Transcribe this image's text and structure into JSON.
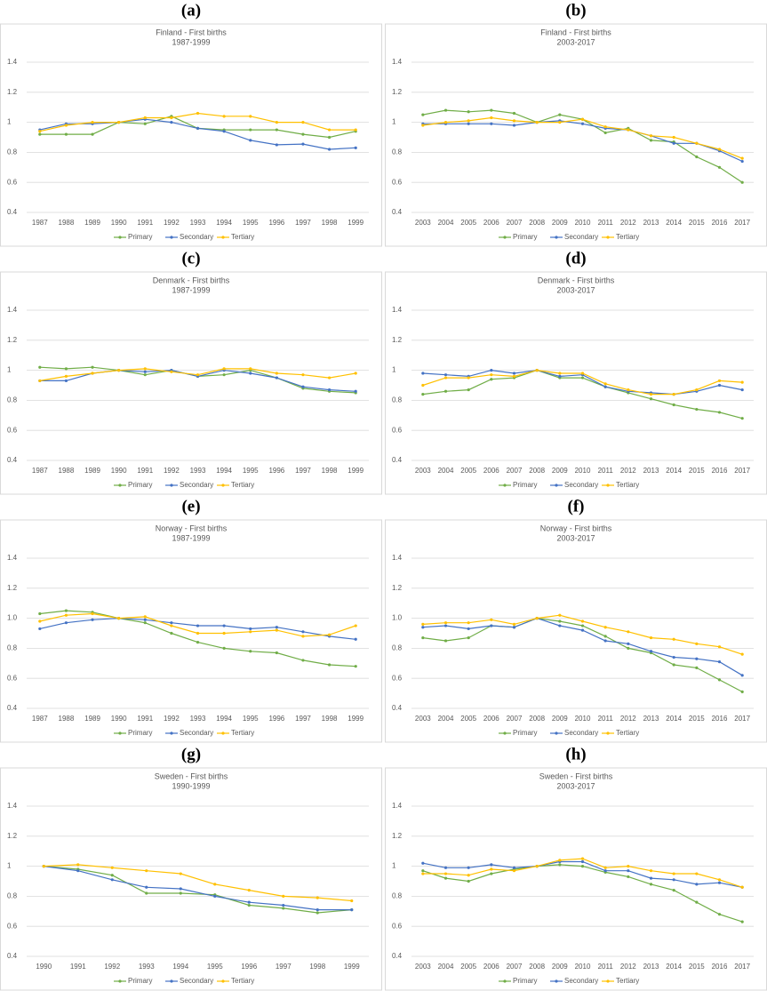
{
  "chart_data": [
    {
      "type": "line",
      "panel": "(a)",
      "title": "Finland - First births",
      "subtitle": "1987-1999",
      "categories": [
        "1987",
        "1988",
        "1989",
        "1990",
        "1991",
        "1992",
        "1993",
        "1994",
        "1995",
        "1996",
        "1997",
        "1998",
        "1999"
      ],
      "series": [
        {
          "name": "Primary",
          "color": "#70ad47",
          "values": [
            0.92,
            0.92,
            0.92,
            1.0,
            0.99,
            1.04,
            0.96,
            0.95,
            0.95,
            0.95,
            0.92,
            0.9,
            0.94
          ]
        },
        {
          "name": "Secondary",
          "color": "#4472c4",
          "values": [
            0.95,
            0.99,
            0.99,
            1.0,
            1.02,
            1.0,
            0.96,
            0.94,
            0.88,
            0.85,
            0.855,
            0.82,
            0.83
          ]
        },
        {
          "name": "Tertiary",
          "color": "#ffc000",
          "values": [
            0.94,
            0.98,
            1.0,
            1.0,
            1.03,
            1.03,
            1.06,
            1.04,
            1.04,
            1.0,
            1.0,
            0.95,
            0.95
          ]
        }
      ],
      "ylim": [
        0.4,
        1.4
      ],
      "yticks": [
        0.4,
        0.6,
        0.8,
        1,
        1.2,
        1.4
      ],
      "grid": true,
      "legend": "bottom"
    },
    {
      "type": "line",
      "panel": "(b)",
      "title": "Finland - First births",
      "subtitle": "2003-2017",
      "categories": [
        "2003",
        "2004",
        "2005",
        "2006",
        "2007",
        "2008",
        "2009",
        "2010",
        "2011",
        "2012",
        "2013",
        "2014",
        "2015",
        "2016",
        "2017"
      ],
      "series": [
        {
          "name": "Primary",
          "color": "#70ad47",
          "values": [
            1.05,
            1.08,
            1.07,
            1.08,
            1.06,
            1.0,
            1.05,
            1.02,
            0.93,
            0.96,
            0.88,
            0.87,
            0.77,
            0.7,
            0.6
          ]
        },
        {
          "name": "Secondary",
          "color": "#4472c4",
          "values": [
            0.99,
            0.99,
            0.99,
            0.99,
            0.98,
            1.0,
            1.01,
            0.99,
            0.96,
            0.95,
            0.91,
            0.86,
            0.86,
            0.81,
            0.74
          ]
        },
        {
          "name": "Tertiary",
          "color": "#ffc000",
          "values": [
            0.98,
            1.0,
            1.01,
            1.03,
            1.01,
            1.0,
            1.0,
            1.02,
            0.97,
            0.95,
            0.91,
            0.9,
            0.86,
            0.82,
            0.76
          ]
        }
      ],
      "ylim": [
        0.4,
        1.4
      ],
      "yticks": [
        0.4,
        0.6,
        0.8,
        1,
        1.2,
        1.4
      ],
      "grid": true,
      "legend": "bottom"
    },
    {
      "type": "line",
      "panel": "(c)",
      "title": "Denmark - First births",
      "subtitle": "1987-1999",
      "categories": [
        "1987",
        "1988",
        "1989",
        "1990",
        "1991",
        "1992",
        "1993",
        "1994",
        "1995",
        "1996",
        "1997",
        "1998",
        "1999"
      ],
      "series": [
        {
          "name": "Primary",
          "color": "#70ad47",
          "values": [
            1.02,
            1.01,
            1.02,
            1.0,
            0.97,
            1.0,
            0.96,
            0.97,
            1.0,
            0.95,
            0.88,
            0.86,
            0.85
          ]
        },
        {
          "name": "Secondary",
          "color": "#4472c4",
          "values": [
            0.93,
            0.93,
            0.98,
            1.0,
            0.99,
            1.0,
            0.96,
            1.0,
            0.98,
            0.95,
            0.89,
            0.87,
            0.86
          ]
        },
        {
          "name": "Tertiary",
          "color": "#ffc000",
          "values": [
            0.93,
            0.96,
            0.98,
            1.0,
            1.01,
            0.99,
            0.97,
            1.01,
            1.01,
            0.98,
            0.97,
            0.95,
            0.98
          ]
        }
      ],
      "ylim": [
        0.4,
        1.4
      ],
      "yticks": [
        0.4,
        0.6,
        0.8,
        1,
        1.2,
        1.4
      ],
      "grid": true,
      "legend": "bottom"
    },
    {
      "type": "line",
      "panel": "(d)",
      "title": "Denmark - First births",
      "subtitle": "2003-2017",
      "categories": [
        "2003",
        "2004",
        "2005",
        "2006",
        "2007",
        "2008",
        "2009",
        "2010",
        "2011",
        "2012",
        "2013",
        "2014",
        "2015",
        "2016",
        "2017"
      ],
      "series": [
        {
          "name": "Primary",
          "color": "#70ad47",
          "values": [
            0.84,
            0.86,
            0.87,
            0.94,
            0.95,
            1.0,
            0.95,
            0.95,
            0.89,
            0.85,
            0.81,
            0.77,
            0.74,
            0.72,
            0.68
          ]
        },
        {
          "name": "Secondary",
          "color": "#4472c4",
          "values": [
            0.98,
            0.97,
            0.96,
            1.0,
            0.98,
            1.0,
            0.96,
            0.97,
            0.89,
            0.86,
            0.85,
            0.84,
            0.86,
            0.9,
            0.87
          ]
        },
        {
          "name": "Tertiary",
          "color": "#ffc000",
          "values": [
            0.9,
            0.95,
            0.95,
            0.97,
            0.96,
            1.0,
            0.98,
            0.98,
            0.91,
            0.87,
            0.84,
            0.84,
            0.87,
            0.93,
            0.92
          ]
        }
      ],
      "ylim": [
        0.4,
        1.4
      ],
      "yticks": [
        0.4,
        0.6,
        0.8,
        1,
        1.2,
        1.4
      ],
      "grid": true,
      "legend": "bottom"
    },
    {
      "type": "line",
      "panel": "(e)",
      "title": "Norway - First births",
      "subtitle": "1987-1999",
      "categories": [
        "1987",
        "1988",
        "1989",
        "1990",
        "1991",
        "1992",
        "1993",
        "1994",
        "1995",
        "1996",
        "1997",
        "1998",
        "1999"
      ],
      "series": [
        {
          "name": "Primary",
          "color": "#70ad47",
          "values": [
            1.03,
            1.05,
            1.04,
            1.0,
            0.97,
            0.9,
            0.84,
            0.8,
            0.78,
            0.77,
            0.72,
            0.69,
            0.68
          ]
        },
        {
          "name": "Secondary",
          "color": "#4472c4",
          "values": [
            0.93,
            0.97,
            0.99,
            1.0,
            0.99,
            0.97,
            0.95,
            0.95,
            0.93,
            0.94,
            0.91,
            0.88,
            0.86
          ]
        },
        {
          "name": "Tertiary",
          "color": "#ffc000",
          "values": [
            0.98,
            1.02,
            1.03,
            1.0,
            1.01,
            0.95,
            0.9,
            0.9,
            0.91,
            0.92,
            0.88,
            0.89,
            0.95
          ]
        }
      ],
      "ylim": [
        0.4,
        1.4
      ],
      "yticks": [
        0.4,
        0.6,
        0.8,
        {
          "value": 1,
          "label": "1.0"
        },
        1.2,
        1.4
      ],
      "grid": true,
      "legend": "bottom"
    },
    {
      "type": "line",
      "panel": "(f)",
      "title": "Norway - First births",
      "subtitle": "2003-2017",
      "categories": [
        "2003",
        "2004",
        "2005",
        "2006",
        "2007",
        "2008",
        "2009",
        "2010",
        "2011",
        "2012",
        "2013",
        "2014",
        "2015",
        "2016",
        "2017"
      ],
      "series": [
        {
          "name": "Primary",
          "color": "#70ad47",
          "values": [
            0.87,
            0.85,
            0.87,
            0.95,
            0.94,
            1.0,
            0.98,
            0.95,
            0.88,
            0.8,
            0.77,
            0.69,
            0.67,
            0.59,
            0.51
          ]
        },
        {
          "name": "Secondary",
          "color": "#4472c4",
          "values": [
            0.94,
            0.95,
            0.93,
            0.95,
            0.94,
            1.0,
            0.95,
            0.92,
            0.85,
            0.83,
            0.78,
            0.74,
            0.73,
            0.71,
            0.62
          ]
        },
        {
          "name": "Tertiary",
          "color": "#ffc000",
          "values": [
            0.96,
            0.97,
            0.97,
            0.99,
            0.96,
            1.0,
            1.02,
            0.98,
            0.94,
            0.91,
            0.87,
            0.86,
            0.83,
            0.81,
            0.76
          ]
        }
      ],
      "ylim": [
        0.4,
        1.4
      ],
      "yticks": [
        0.4,
        0.6,
        0.8,
        {
          "value": 1,
          "label": "1.0"
        },
        1.2,
        1.4
      ],
      "grid": true,
      "legend": "bottom"
    },
    {
      "type": "line",
      "panel": "(g)",
      "title": "Sweden - First births",
      "subtitle": "1990-1999",
      "categories": [
        "1990",
        "1991",
        "1992",
        "1993",
        "1994",
        "1995",
        "1996",
        "1997",
        "1998",
        "1999"
      ],
      "series": [
        {
          "name": "Primary",
          "color": "#70ad47",
          "values": [
            1.0,
            0.98,
            0.94,
            0.82,
            0.82,
            0.81,
            0.74,
            0.72,
            0.69,
            0.71
          ]
        },
        {
          "name": "Secondary",
          "color": "#4472c4",
          "values": [
            1.0,
            0.97,
            0.91,
            0.86,
            0.85,
            0.8,
            0.76,
            0.74,
            0.71,
            0.71
          ]
        },
        {
          "name": "Tertiary",
          "color": "#ffc000",
          "values": [
            1.0,
            1.01,
            0.99,
            0.97,
            0.95,
            0.88,
            0.84,
            0.8,
            0.79,
            0.77
          ]
        }
      ],
      "ylim": [
        0.4,
        1.4
      ],
      "yticks": [
        0.4,
        0.6,
        0.8,
        1,
        1.2,
        1.4
      ],
      "grid": true,
      "legend": "bottom"
    },
    {
      "type": "line",
      "panel": "(h)",
      "title": "Sweden - First births",
      "subtitle": "2003-2017",
      "categories": [
        "2003",
        "2004",
        "2005",
        "2006",
        "2007",
        "2008",
        "2009",
        "2010",
        "2011",
        "2012",
        "2013",
        "2014",
        "2015",
        "2016",
        "2017"
      ],
      "series": [
        {
          "name": "Primary",
          "color": "#70ad47",
          "values": [
            0.97,
            0.92,
            0.9,
            0.95,
            0.98,
            1.0,
            1.01,
            1.0,
            0.96,
            0.93,
            0.88,
            0.84,
            0.76,
            0.68,
            0.63
          ]
        },
        {
          "name": "Secondary",
          "color": "#4472c4",
          "values": [
            1.02,
            0.99,
            0.99,
            1.01,
            0.99,
            1.0,
            1.03,
            1.03,
            0.97,
            0.97,
            0.92,
            0.91,
            0.88,
            0.89,
            0.86
          ]
        },
        {
          "name": "Tertiary",
          "color": "#ffc000",
          "values": [
            0.95,
            0.95,
            0.94,
            0.98,
            0.97,
            1.0,
            1.04,
            1.05,
            0.99,
            1.0,
            0.97,
            0.95,
            0.95,
            0.91,
            0.86
          ]
        }
      ],
      "ylim": [
        0.4,
        1.4
      ],
      "yticks": [
        0.4,
        0.6,
        0.8,
        1,
        1.2,
        1.4
      ],
      "grid": true,
      "legend": "bottom"
    }
  ]
}
